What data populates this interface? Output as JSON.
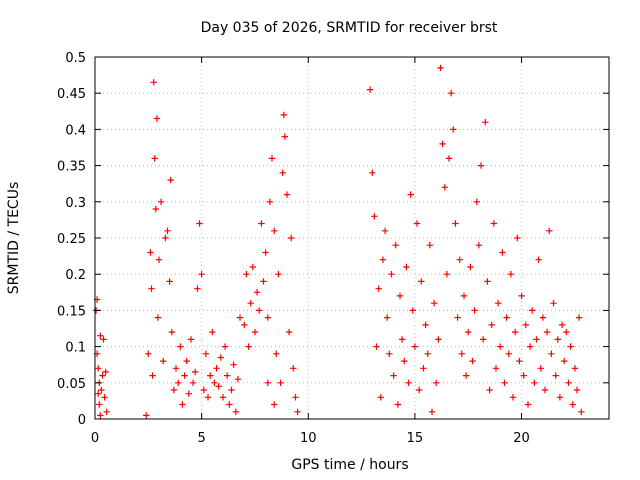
{
  "chart_data": {
    "type": "scatter",
    "title": "Day 035 of 2026, SRMTID for receiver brst",
    "xlabel": "GPS time / hours",
    "ylabel": "SRMTID / TECUs",
    "xlim": [
      0,
      24.1
    ],
    "ylim": [
      0,
      0.5
    ],
    "x_ticks": [
      0,
      5,
      10,
      15,
      20
    ],
    "y_ticks": [
      0,
      0.05,
      0.1,
      0.15,
      0.2,
      0.25,
      0.3,
      0.35,
      0.4,
      0.45,
      0.5
    ],
    "x_tick_labels": [
      "0",
      "5",
      "10",
      "15",
      "20"
    ],
    "y_tick_labels": [
      "0",
      "0.05",
      "0.1",
      "0.15",
      "0.2",
      "0.25",
      "0.3",
      "0.35",
      "0.4",
      "0.45",
      "0.5"
    ],
    "grid": true,
    "marker": "+",
    "color": "#ff0000",
    "series": [
      {
        "name": "SRMTID",
        "points": [
          [
            0.05,
            0.15
          ],
          [
            0.1,
            0.165
          ],
          [
            0.1,
            0.09
          ],
          [
            0.15,
            0.07
          ],
          [
            0.2,
            0.05
          ],
          [
            0.2,
            0.02
          ],
          [
            0.25,
            0.115
          ],
          [
            0.3,
            0.04
          ],
          [
            0.35,
            0.06
          ],
          [
            0.4,
            0.11
          ],
          [
            0.45,
            0.03
          ],
          [
            0.5,
            0.065
          ],
          [
            0.55,
            0.01
          ],
          [
            0.25,
            0.005
          ],
          [
            0.15,
            0.035
          ],
          [
            2.4,
            0.005
          ],
          [
            2.5,
            0.09
          ],
          [
            2.6,
            0.23
          ],
          [
            2.65,
            0.18
          ],
          [
            2.7,
            0.06
          ],
          [
            2.75,
            0.465
          ],
          [
            2.8,
            0.36
          ],
          [
            2.85,
            0.29
          ],
          [
            2.9,
            0.415
          ],
          [
            2.95,
            0.14
          ],
          [
            3.0,
            0.22
          ],
          [
            3.1,
            0.3
          ],
          [
            3.2,
            0.08
          ],
          [
            3.3,
            0.25
          ],
          [
            3.4,
            0.26
          ],
          [
            3.5,
            0.19
          ],
          [
            3.55,
            0.33
          ],
          [
            3.6,
            0.12
          ],
          [
            3.7,
            0.04
          ],
          [
            3.8,
            0.07
          ],
          [
            3.9,
            0.05
          ],
          [
            4.0,
            0.1
          ],
          [
            4.1,
            0.02
          ],
          [
            4.2,
            0.06
          ],
          [
            4.3,
            0.08
          ],
          [
            4.4,
            0.035
          ],
          [
            4.5,
            0.11
          ],
          [
            4.6,
            0.05
          ],
          [
            4.7,
            0.065
          ],
          [
            4.8,
            0.18
          ],
          [
            4.9,
            0.27
          ],
          [
            5.0,
            0.2
          ],
          [
            5.1,
            0.04
          ],
          [
            5.2,
            0.09
          ],
          [
            5.3,
            0.03
          ],
          [
            5.4,
            0.06
          ],
          [
            5.5,
            0.12
          ],
          [
            5.6,
            0.05
          ],
          [
            5.7,
            0.07
          ],
          [
            5.8,
            0.045
          ],
          [
            5.9,
            0.085
          ],
          [
            6.0,
            0.03
          ],
          [
            6.1,
            0.1
          ],
          [
            6.2,
            0.06
          ],
          [
            6.3,
            0.02
          ],
          [
            6.4,
            0.04
          ],
          [
            6.5,
            0.075
          ],
          [
            6.6,
            0.01
          ],
          [
            6.7,
            0.055
          ],
          [
            6.8,
            0.14
          ],
          [
            7.0,
            0.13
          ],
          [
            7.1,
            0.2
          ],
          [
            7.2,
            0.1
          ],
          [
            7.3,
            0.16
          ],
          [
            7.4,
            0.21
          ],
          [
            7.5,
            0.12
          ],
          [
            7.6,
            0.175
          ],
          [
            7.7,
            0.15
          ],
          [
            7.8,
            0.27
          ],
          [
            7.9,
            0.19
          ],
          [
            8.0,
            0.23
          ],
          [
            8.1,
            0.14
          ],
          [
            8.2,
            0.3
          ],
          [
            8.3,
            0.36
          ],
          [
            8.4,
            0.26
          ],
          [
            8.5,
            0.09
          ],
          [
            8.6,
            0.2
          ],
          [
            8.7,
            0.05
          ],
          [
            8.8,
            0.34
          ],
          [
            8.85,
            0.42
          ],
          [
            8.9,
            0.39
          ],
          [
            9.0,
            0.31
          ],
          [
            9.1,
            0.12
          ],
          [
            9.2,
            0.25
          ],
          [
            9.3,
            0.07
          ],
          [
            9.4,
            0.03
          ],
          [
            9.5,
            0.01
          ],
          [
            8.4,
            0.02
          ],
          [
            8.1,
            0.05
          ],
          [
            12.9,
            0.455
          ],
          [
            13.0,
            0.34
          ],
          [
            13.1,
            0.28
          ],
          [
            13.2,
            0.1
          ],
          [
            13.3,
            0.18
          ],
          [
            13.4,
            0.03
          ],
          [
            13.5,
            0.22
          ],
          [
            13.6,
            0.26
          ],
          [
            13.7,
            0.14
          ],
          [
            13.8,
            0.09
          ],
          [
            13.9,
            0.2
          ],
          [
            14.0,
            0.06
          ],
          [
            14.1,
            0.24
          ],
          [
            14.2,
            0.02
          ],
          [
            14.3,
            0.17
          ],
          [
            14.4,
            0.11
          ],
          [
            14.5,
            0.08
          ],
          [
            14.6,
            0.21
          ],
          [
            14.7,
            0.05
          ],
          [
            14.8,
            0.31
          ],
          [
            14.9,
            0.15
          ],
          [
            15.0,
            0.1
          ],
          [
            15.1,
            0.27
          ],
          [
            15.2,
            0.04
          ],
          [
            15.3,
            0.19
          ],
          [
            15.4,
            0.07
          ],
          [
            15.5,
            0.13
          ],
          [
            15.6,
            0.09
          ],
          [
            15.7,
            0.24
          ],
          [
            15.8,
            0.01
          ],
          [
            15.9,
            0.16
          ],
          [
            16.0,
            0.05
          ],
          [
            16.1,
            0.11
          ],
          [
            16.2,
            0.485
          ],
          [
            16.3,
            0.38
          ],
          [
            16.4,
            0.32
          ],
          [
            16.5,
            0.2
          ],
          [
            16.6,
            0.36
          ],
          [
            16.7,
            0.45
          ],
          [
            16.8,
            0.4
          ],
          [
            16.9,
            0.27
          ],
          [
            17.0,
            0.14
          ],
          [
            17.1,
            0.22
          ],
          [
            17.2,
            0.09
          ],
          [
            17.3,
            0.17
          ],
          [
            17.4,
            0.06
          ],
          [
            17.5,
            0.12
          ],
          [
            17.6,
            0.21
          ],
          [
            17.7,
            0.08
          ],
          [
            17.8,
            0.15
          ],
          [
            17.9,
            0.3
          ],
          [
            18.0,
            0.24
          ],
          [
            18.1,
            0.35
          ],
          [
            18.2,
            0.11
          ],
          [
            18.3,
            0.41
          ],
          [
            18.4,
            0.19
          ],
          [
            18.5,
            0.04
          ],
          [
            18.6,
            0.13
          ],
          [
            18.7,
            0.27
          ],
          [
            18.8,
            0.07
          ],
          [
            18.9,
            0.16
          ],
          [
            19.0,
            0.1
          ],
          [
            19.1,
            0.23
          ],
          [
            19.2,
            0.05
          ],
          [
            19.3,
            0.14
          ],
          [
            19.4,
            0.09
          ],
          [
            19.5,
            0.2
          ],
          [
            19.6,
            0.03
          ],
          [
            19.7,
            0.12
          ],
          [
            19.8,
            0.25
          ],
          [
            19.9,
            0.08
          ],
          [
            20.0,
            0.17
          ],
          [
            20.1,
            0.06
          ],
          [
            20.2,
            0.13
          ],
          [
            20.3,
            0.02
          ],
          [
            20.4,
            0.1
          ],
          [
            20.5,
            0.15
          ],
          [
            20.6,
            0.05
          ],
          [
            20.7,
            0.11
          ],
          [
            20.8,
            0.22
          ],
          [
            20.9,
            0.07
          ],
          [
            21.0,
            0.14
          ],
          [
            21.1,
            0.04
          ],
          [
            21.2,
            0.12
          ],
          [
            21.3,
            0.26
          ],
          [
            21.4,
            0.09
          ],
          [
            21.5,
            0.16
          ],
          [
            21.6,
            0.06
          ],
          [
            21.7,
            0.11
          ],
          [
            21.8,
            0.03
          ],
          [
            21.9,
            0.13
          ],
          [
            22.0,
            0.08
          ],
          [
            22.1,
            0.12
          ],
          [
            22.2,
            0.05
          ],
          [
            22.3,
            0.1
          ],
          [
            22.4,
            0.02
          ],
          [
            22.5,
            0.07
          ],
          [
            22.6,
            0.04
          ],
          [
            22.7,
            0.14
          ],
          [
            22.8,
            0.01
          ]
        ]
      }
    ]
  }
}
